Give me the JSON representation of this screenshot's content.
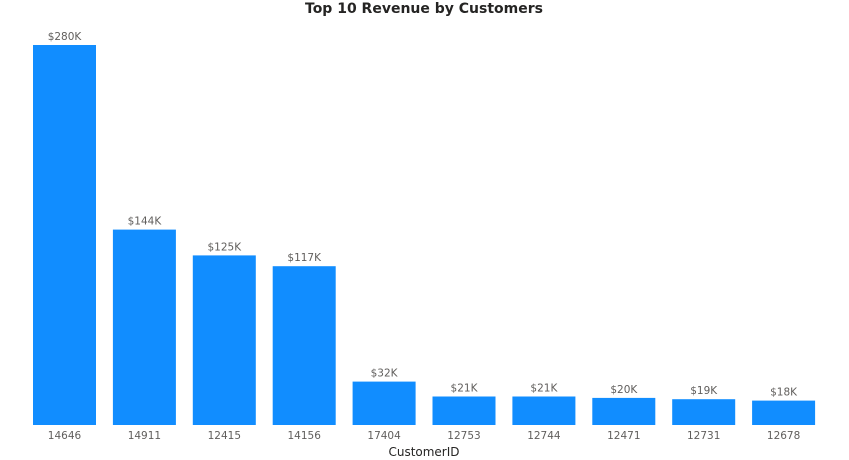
{
  "chart_data": {
    "type": "bar",
    "title": "Top 10 Revenue by Customers",
    "xlabel": "CustomerID",
    "ylabel": "",
    "categories": [
      "14646",
      "14911",
      "12415",
      "14156",
      "17404",
      "12753",
      "12744",
      "12471",
      "12731",
      "12678"
    ],
    "values": [
      280,
      144,
      125,
      117,
      32,
      21,
      21,
      20,
      19,
      18
    ],
    "value_labels": [
      "$280K",
      "$144K",
      "$125K",
      "$117K",
      "$32K",
      "$21K",
      "$21K",
      "$20K",
      "$19K",
      "$18K"
    ],
    "ylim": [
      0,
      280
    ],
    "grid": false,
    "legend": "none",
    "bar_color": "#118dff"
  }
}
